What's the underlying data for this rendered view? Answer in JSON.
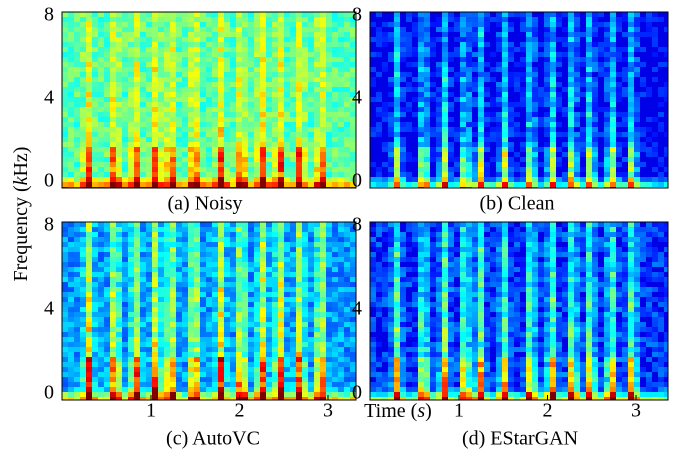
{
  "figure": {
    "y_label": [
      "Frequency (",
      "k",
      "Hz)"
    ],
    "x_label": [
      "Time (",
      "s",
      ")"
    ],
    "panels": [
      {
        "caption": "(a) Noisy",
        "yticks": [
          "8",
          "4",
          "0"
        ]
      },
      {
        "caption": "(b) Clean",
        "yticks": [
          "8",
          "4",
          "0"
        ]
      },
      {
        "caption": "(c) AutoVC",
        "yticks": [
          "8",
          "4",
          "0"
        ],
        "xticks": [
          "1",
          "2",
          "3"
        ]
      },
      {
        "caption": "(d) EStarGAN",
        "yticks": [
          "8",
          "4",
          "0"
        ],
        "xticks": [
          "1",
          "2",
          "3"
        ]
      }
    ]
  }
}
